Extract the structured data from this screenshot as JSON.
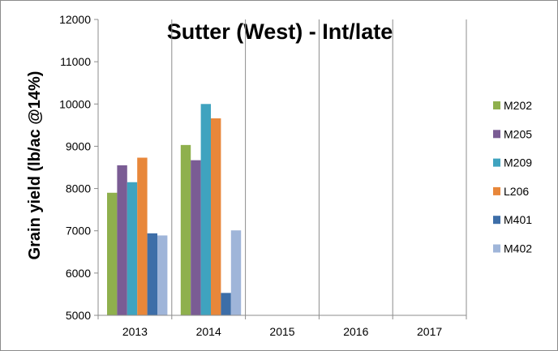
{
  "chart_data": {
    "type": "bar",
    "title": "Sutter (West) - Int/late",
    "xlabel": "",
    "ylabel": "Grain yield (lb/ac @14%)",
    "ylim": [
      5000,
      12000
    ],
    "yticks": [
      5000,
      6000,
      7000,
      8000,
      9000,
      10000,
      11000,
      12000
    ],
    "categories": [
      "2013",
      "2014",
      "2015",
      "2016",
      "2017"
    ],
    "grid": "vertical gridlines between categories",
    "legend_position": "right",
    "series": [
      {
        "name": "M202",
        "color": "#8FB04D",
        "values": [
          7900,
          9030,
          null,
          null,
          null
        ]
      },
      {
        "name": "M205",
        "color": "#7A5C94",
        "values": [
          8550,
          8670,
          null,
          null,
          null
        ]
      },
      {
        "name": "M209",
        "color": "#3FA3BF",
        "values": [
          8150,
          10000,
          null,
          null,
          null
        ]
      },
      {
        "name": "L206",
        "color": "#E8873A",
        "values": [
          8730,
          9660,
          null,
          null,
          null
        ]
      },
      {
        "name": "M401",
        "color": "#3D6EA8",
        "values": [
          6940,
          5530,
          null,
          null,
          null
        ]
      },
      {
        "name": "M402",
        "color": "#9FB5D9",
        "values": [
          6890,
          7010,
          null,
          null,
          null
        ]
      }
    ]
  }
}
